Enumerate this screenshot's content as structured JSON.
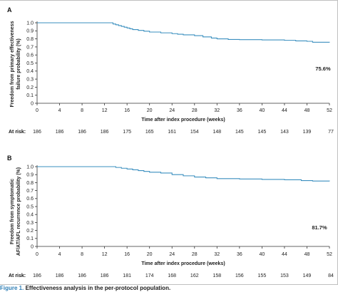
{
  "colors": {
    "curve": "#3a8fbf",
    "axis": "#333333",
    "border": "#bfbfbf"
  },
  "caption": {
    "figure_label": "Figure 1.",
    "text": "Effectiveness analysis in the per-protocol population."
  },
  "chart_data": [
    {
      "type": "line",
      "panel_label": "A",
      "title": "",
      "xlabel": "Time after index procedure (weeks)",
      "ylabel_lines": [
        "Freedom from primary effectiveness",
        "failure probability (%)"
      ],
      "xlim": [
        0,
        52
      ],
      "ylim": [
        0,
        1.0
      ],
      "x_ticks": [
        0,
        4,
        8,
        12,
        16,
        20,
        24,
        28,
        32,
        36,
        40,
        44,
        48,
        52
      ],
      "y_ticks": [
        0,
        0.1,
        0.2,
        0.3,
        0.4,
        0.5,
        0.6,
        0.7,
        0.8,
        0.9,
        1.0
      ],
      "y_tick_labels": [
        "0",
        "0.1",
        "0.2",
        "0.3",
        "0.4",
        "0.5",
        "0.6",
        "0.7",
        "0.8",
        "0.9",
        "1.0"
      ],
      "end_label": "75.6%",
      "series": [
        {
          "x": [
            0,
            13.0,
            13.5,
            14.0,
            14.5,
            15.0,
            15.5,
            16.0,
            16.5,
            17.0,
            18.0,
            19.0,
            20.0,
            22.0,
            24.0,
            25.0,
            26.0,
            28.0,
            29.5,
            31.0,
            32.0,
            34.0,
            36.0,
            40.0,
            44.0,
            46.0,
            48.0,
            49.0,
            52.0
          ],
          "y": [
            1.0,
            1.0,
            0.985,
            0.975,
            0.965,
            0.955,
            0.945,
            0.935,
            0.925,
            0.915,
            0.905,
            0.895,
            0.885,
            0.875,
            0.865,
            0.858,
            0.85,
            0.84,
            0.825,
            0.81,
            0.8,
            0.793,
            0.79,
            0.787,
            0.782,
            0.775,
            0.77,
            0.758,
            0.756
          ]
        }
      ],
      "at_risk_label": "At risk:",
      "at_risk": [
        "186",
        "186",
        "186",
        "186",
        "175",
        "165",
        "161",
        "154",
        "148",
        "145",
        "145",
        "143",
        "139",
        "77"
      ]
    },
    {
      "type": "line",
      "panel_label": "B",
      "title": "",
      "xlabel": "Time after index procedure (weeks)",
      "ylabel_lines": [
        "Freedom from symptomatic",
        "AF/AT/AFL recurrence probability (%)"
      ],
      "xlim": [
        0,
        52
      ],
      "ylim": [
        0,
        1.0
      ],
      "x_ticks": [
        0,
        4,
        8,
        12,
        16,
        20,
        24,
        28,
        32,
        36,
        40,
        44,
        48,
        52
      ],
      "y_ticks": [
        0,
        0.1,
        0.2,
        0.3,
        0.4,
        0.5,
        0.6,
        0.7,
        0.8,
        0.9,
        1.0
      ],
      "y_tick_labels": [
        "0",
        "0.1",
        "0.2",
        "0.3",
        "0.4",
        "0.5",
        "0.6",
        "0.7",
        "0.8",
        "0.9",
        "1.0"
      ],
      "end_label": "81.7%",
      "series": [
        {
          "x": [
            0,
            13.5,
            14.0,
            15.0,
            16.0,
            17.0,
            18.0,
            19.0,
            20.0,
            22.0,
            24.0,
            26.0,
            28.0,
            30.0,
            32.0,
            36.0,
            40.0,
            44.0,
            47.0,
            49.0,
            52.0
          ],
          "y": [
            1.0,
            1.0,
            0.99,
            0.98,
            0.97,
            0.96,
            0.95,
            0.94,
            0.93,
            0.92,
            0.9,
            0.885,
            0.87,
            0.86,
            0.85,
            0.845,
            0.84,
            0.835,
            0.825,
            0.82,
            0.817
          ]
        }
      ],
      "at_risk_label": "At risk:",
      "at_risk": [
        "186",
        "186",
        "186",
        "186",
        "181",
        "174",
        "168",
        "162",
        "158",
        "156",
        "155",
        "153",
        "149",
        "84"
      ]
    }
  ]
}
